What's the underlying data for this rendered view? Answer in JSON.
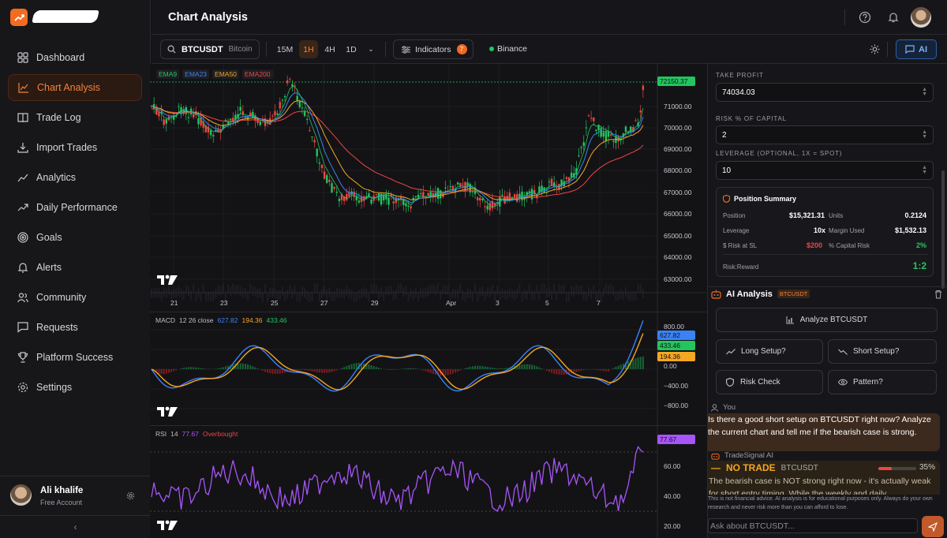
{
  "app": {
    "title": "Chart Analysis"
  },
  "sidebar": {
    "items": [
      {
        "label": "Dashboard",
        "icon": "grid-icon"
      },
      {
        "label": "Chart Analysis",
        "icon": "chart-line-icon",
        "active": true
      },
      {
        "label": "Trade Log",
        "icon": "book-icon"
      },
      {
        "label": "Import Trades",
        "icon": "import-icon"
      },
      {
        "label": "Analytics",
        "icon": "analytics-icon"
      },
      {
        "label": "Daily Performance",
        "icon": "trend-icon"
      },
      {
        "label": "Goals",
        "icon": "target-icon"
      },
      {
        "label": "Alerts",
        "icon": "bell-icon"
      },
      {
        "label": "Community",
        "icon": "users-icon"
      },
      {
        "label": "Requests",
        "icon": "message-icon"
      },
      {
        "label": "Platform Success",
        "icon": "trophy-icon"
      },
      {
        "label": "Settings",
        "icon": "gear-icon"
      }
    ],
    "user": {
      "name": "Ali khalife",
      "plan": "Free Account"
    },
    "collapse": "‹"
  },
  "toolbar": {
    "symbol": "BTCUSDT",
    "symbol_name": "Bitcoin",
    "timeframes": [
      "15M",
      "1H",
      "4H",
      "1D"
    ],
    "active_tf": "1H",
    "indicators_label": "Indicators",
    "indicators_count": "7",
    "exchange": "Binance",
    "ai_label": "AI"
  },
  "chart": {
    "ema_tags": [
      {
        "label": "EMA9",
        "color": "#22c55e"
      },
      {
        "label": "EMA23",
        "color": "#3b82f6"
      },
      {
        "label": "EMA50",
        "color": "#f5a623"
      },
      {
        "label": "EMA200",
        "color": "#ef4444"
      }
    ],
    "price_labels": [
      "71000.00",
      "70000.00",
      "69000.00",
      "68000.00",
      "67000.00",
      "66000.00",
      "65000.00",
      "64000.00",
      "63000.00"
    ],
    "last_price": "72150.37",
    "x_labels": [
      "21",
      "23",
      "25",
      "27",
      "29",
      "Apr",
      "3",
      "5",
      "7"
    ],
    "macd": {
      "label": "MACD",
      "params": "12 26 close",
      "v1": "627.82",
      "v2": "194.36",
      "v3": "433.46",
      "axis": [
        "800.00",
        "400.00",
        "0.00",
        "−400.00",
        "−800.00"
      ]
    },
    "rsi": {
      "label": "RSI",
      "period": "14",
      "value": "77.67",
      "state": "Overbought",
      "axis": [
        "60.00",
        "40.00",
        "20.00"
      ]
    },
    "tv_logo": "TV"
  },
  "panel": {
    "take_profit_label": "TAKE PROFIT",
    "take_profit": "74034.03",
    "risk_label": "RISK % OF CAPITAL",
    "risk": "2",
    "leverage_label": "LEVERAGE (OPTIONAL, 1X = SPOT)",
    "leverage": "10",
    "summary": {
      "title": "Position Summary",
      "position_lbl": "Position",
      "position": "$15,321.31",
      "units_lbl": "Units",
      "units": "0.2124",
      "leverage_lbl": "Leverage",
      "leverage": "10x",
      "margin_lbl": "Margin Used",
      "margin": "$1,532.13",
      "risk_sl_lbl": "$ Risk at SL",
      "risk_sl": "$200",
      "cap_risk_lbl": "% Capital Risk",
      "cap_risk": "2%",
      "rr_lbl": "Risk:Reward",
      "rr": "1:2"
    },
    "ai": {
      "title": "AI Analysis",
      "chip": "BTCUSDT",
      "analyze": "Analyze BTCUSDT",
      "long": "Long Setup?",
      "short": "Short Setup?",
      "risk": "Risk Check",
      "pattern": "Pattern?"
    },
    "chat": {
      "you": "You",
      "user_msg": "Is there a good short setup on BTCUSDT right now? Analyze the current chart and tell me if the bearish case is strong.",
      "bot": "TradeSignal AI",
      "verdict": "NO TRADE",
      "verdict_sym": "BTCUSDT",
      "confidence": "35%",
      "bot_msg": "The bearish case is NOT strong right now - it's actually weak for short entry timing. While the weekly and daily",
      "disclaimer": "This is not financial advice. AI analysis is for educational purposes only. Always do your own research and never risk more than you can afford to lose.",
      "placeholder": "Ask about BTCUSDT..."
    }
  }
}
